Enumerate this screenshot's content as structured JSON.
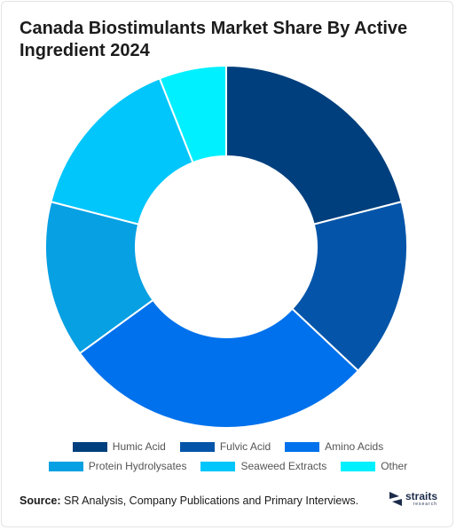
{
  "title": "Canada Biostimulants Market Share By Active Ingredient 2024",
  "source_label": "Source:",
  "source_text": "SR Analysis, Company Publications and Primary Interviews.",
  "logo": {
    "word": "straits",
    "sub": "research"
  },
  "chart_data": {
    "type": "pie",
    "donut": true,
    "title": "Canada Biostimulants Market Share By Active Ingredient 2024",
    "legend_position": "bottom",
    "categories": [
      "Humic Acid",
      "Fulvic Acid",
      "Amino Acids",
      "Protein Hydrolysates",
      "Seaweed Extracts",
      "Other"
    ],
    "values": [
      21,
      16,
      28,
      14,
      15,
      6
    ],
    "colors": [
      "#003f7d",
      "#0455a9",
      "#0071ec",
      "#07a0e3",
      "#00c6fb",
      "#00f0ff"
    ]
  }
}
